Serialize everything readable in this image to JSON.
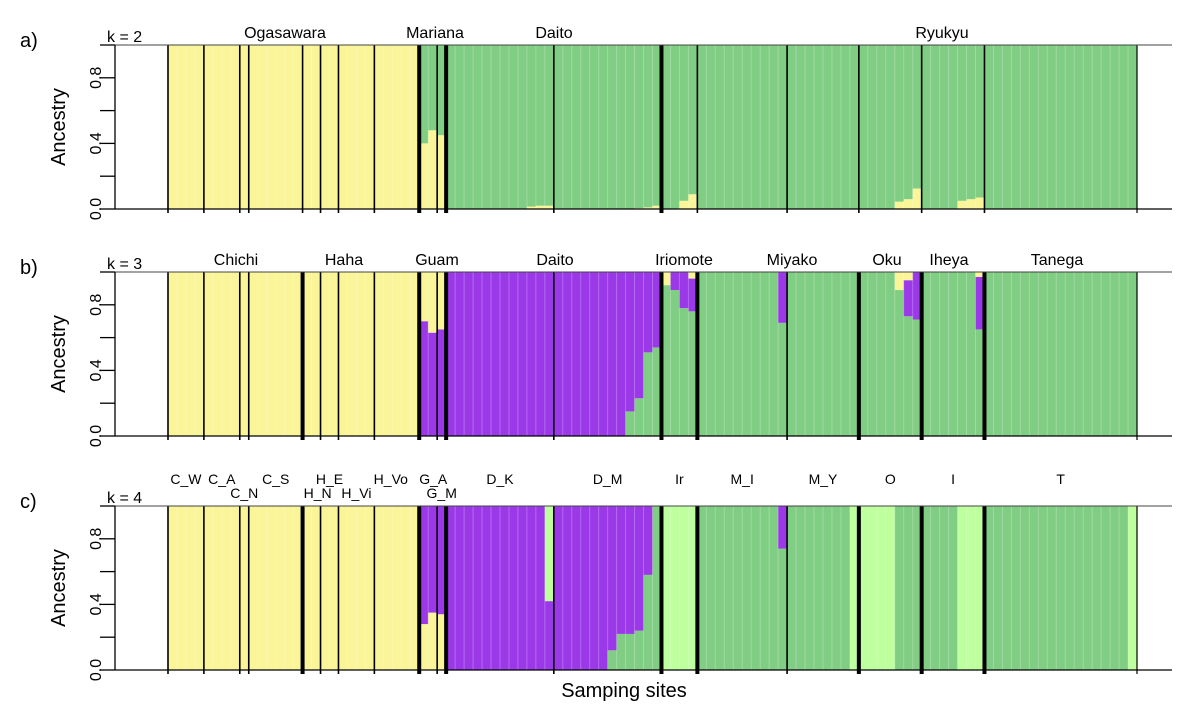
{
  "chart_data": {
    "type": "stacked-bar",
    "xlabel": "Samping sites",
    "ylabel": "Ancestry",
    "ylim": [
      0,
      1
    ],
    "yticks": [
      0,
      0.2,
      0.4,
      0.6,
      0.8,
      1.0
    ],
    "ytick_labels": [
      "0.0",
      "0.4",
      "0.8"
    ],
    "colors": {
      "yellow": "#FAF598",
      "green": "#80CD84",
      "purple": "#9B38E8",
      "lightgreen": "#BEFF9E"
    },
    "populations": [
      {
        "name": "C_W",
        "n": 4
      },
      {
        "name": "C_A",
        "n": 4
      },
      {
        "name": "C_N",
        "n": 1
      },
      {
        "name": "C_S",
        "n": 6
      },
      {
        "name": "H_N",
        "n": 2
      },
      {
        "name": "H_E",
        "n": 2
      },
      {
        "name": "H_Vi",
        "n": 4
      },
      {
        "name": "H_Vo",
        "n": 5
      },
      {
        "name": "G_A",
        "n": 2
      },
      {
        "name": "G_M",
        "n": 1
      },
      {
        "name": "D_K",
        "n": 12
      },
      {
        "name": "D_M",
        "n": 12
      },
      {
        "name": "Ir",
        "n": 4
      },
      {
        "name": "M_I",
        "n": 10
      },
      {
        "name": "M_Y",
        "n": 8
      },
      {
        "name": "O",
        "n": 7
      },
      {
        "name": "I",
        "n": 7
      },
      {
        "name": "T",
        "n": 17
      }
    ],
    "panels": [
      {
        "letter": "a)",
        "k_label": "k = 2",
        "components": [
          "yellow",
          "green"
        ],
        "group_labels": [
          "Ogasawara",
          "Mariana",
          "Daito",
          "Ryukyu"
        ],
        "q": {
          "C_W": {
            "default": [
              1,
              0
            ]
          },
          "C_A": {
            "default": [
              1,
              0
            ]
          },
          "C_N": {
            "default": [
              1,
              0
            ]
          },
          "C_S": {
            "default": [
              1,
              0
            ]
          },
          "H_N": {
            "default": [
              1,
              0
            ]
          },
          "H_E": {
            "default": [
              1,
              0
            ]
          },
          "H_Vi": {
            "default": [
              1,
              0
            ]
          },
          "H_Vo": {
            "default": [
              1,
              0
            ]
          },
          "G_A": {
            "default": [
              0,
              1
            ],
            "individuals": {
              "1": [
                0.4,
                0.6
              ],
              "2": [
                0.48,
                0.52
              ]
            }
          },
          "G_M": {
            "default": [
              0,
              1
            ],
            "individuals": {
              "1": [
                0.45,
                0.55
              ]
            }
          },
          "D_K": {
            "default": [
              0,
              1
            ],
            "individuals": {
              "10": [
                0.015,
                0.985
              ],
              "11": [
                0.02,
                0.98
              ],
              "12": [
                0.02,
                0.98
              ]
            }
          },
          "D_M": {
            "default": [
              0,
              1
            ],
            "individuals": {
              "10": [
                0.005,
                0.995
              ],
              "11": [
                0.01,
                0.99
              ],
              "12": [
                0.02,
                0.98
              ]
            }
          },
          "Ir": {
            "default": [
              0,
              1
            ],
            "individuals": {
              "3": [
                0.05,
                0.95
              ],
              "4": [
                0.09,
                0.91
              ]
            }
          },
          "M_I": {
            "default": [
              0,
              1
            ]
          },
          "M_Y": {
            "default": [
              0,
              1
            ]
          },
          "O": {
            "default": [
              0,
              1
            ],
            "individuals": {
              "5": [
                0.045,
                0.955
              ],
              "6": [
                0.06,
                0.94
              ],
              "7": [
                0.125,
                0.875
              ]
            }
          },
          "I": {
            "default": [
              0,
              1
            ],
            "individuals": {
              "5": [
                0.05,
                0.95
              ],
              "6": [
                0.06,
                0.94
              ],
              "7": [
                0.07,
                0.93
              ]
            }
          },
          "T": {
            "default": [
              0,
              1
            ]
          }
        }
      },
      {
        "letter": "b)",
        "k_label": "k = 3",
        "components": [
          "green",
          "purple",
          "yellow"
        ],
        "group_labels": [
          "Chichi",
          "Haha",
          "Guam",
          "Daito",
          "Iriomote",
          "Miyako",
          "Oku",
          "Iheya",
          "Tanega"
        ],
        "q": {
          "C_W": {
            "default": [
              0,
              0,
              1
            ]
          },
          "C_A": {
            "default": [
              0,
              0,
              1
            ]
          },
          "C_N": {
            "default": [
              0,
              0,
              1
            ]
          },
          "C_S": {
            "default": [
              0,
              0,
              1
            ]
          },
          "H_N": {
            "default": [
              0,
              0,
              1
            ]
          },
          "H_E": {
            "default": [
              0,
              0,
              1
            ]
          },
          "H_Vi": {
            "default": [
              0,
              0,
              1
            ]
          },
          "H_Vo": {
            "default": [
              0,
              0,
              1
            ]
          },
          "G_A": {
            "default": [
              0,
              1,
              0
            ],
            "individuals": {
              "1": [
                0,
                0.7,
                0.3
              ],
              "2": [
                0,
                0.63,
                0.37
              ]
            }
          },
          "G_M": {
            "default": [
              0,
              1,
              0
            ],
            "individuals": {
              "1": [
                0,
                0.65,
                0.35
              ]
            }
          },
          "D_K": {
            "default": [
              0,
              1,
              0
            ]
          },
          "D_M": {
            "default": [
              0,
              1,
              0
            ],
            "individuals": {
              "9": [
                0.15,
                0.85,
                0
              ],
              "10": [
                0.23,
                0.77,
                0
              ],
              "11": [
                0.51,
                0.49,
                0
              ],
              "12": [
                0.54,
                0.46,
                0
              ]
            }
          },
          "Ir": {
            "default": [
              1,
              0,
              0
            ],
            "individuals": {
              "1": [
                0.92,
                0,
                0.08
              ],
              "2": [
                0.89,
                0.11,
                0
              ],
              "3": [
                0.78,
                0.22,
                0
              ],
              "4": [
                0.76,
                0.2,
                0.04
              ]
            }
          },
          "M_I": {
            "default": [
              1,
              0,
              0
            ],
            "individuals": {
              "10": [
                0.69,
                0.31,
                0
              ]
            }
          },
          "M_Y": {
            "default": [
              1,
              0,
              0
            ]
          },
          "O": {
            "default": [
              1,
              0,
              0
            ],
            "individuals": {
              "5": [
                0.89,
                0,
                0.11
              ],
              "6": [
                0.73,
                0.22,
                0.05
              ],
              "7": [
                0.71,
                0.29,
                0
              ]
            }
          },
          "I": {
            "default": [
              1,
              0,
              0
            ],
            "individuals": {
              "7": [
                0.65,
                0.32,
                0.03
              ]
            }
          },
          "T": {
            "default": [
              1,
              0,
              0
            ]
          }
        }
      },
      {
        "letter": "c)",
        "k_label": "k = 4",
        "components": [
          "yellow",
          "green",
          "purple",
          "lightgreen"
        ],
        "group_labels": [],
        "q": {
          "C_W": {
            "default": [
              1,
              0,
              0,
              0
            ]
          },
          "C_A": {
            "default": [
              1,
              0,
              0,
              0
            ]
          },
          "C_N": {
            "default": [
              1,
              0,
              0,
              0
            ]
          },
          "C_S": {
            "default": [
              1,
              0,
              0,
              0
            ]
          },
          "H_N": {
            "default": [
              1,
              0,
              0,
              0
            ]
          },
          "H_E": {
            "default": [
              1,
              0,
              0,
              0
            ]
          },
          "H_Vi": {
            "default": [
              1,
              0,
              0,
              0
            ]
          },
          "H_Vo": {
            "default": [
              1,
              0,
              0,
              0
            ]
          },
          "G_A": {
            "default": [
              0,
              0,
              1,
              0
            ],
            "individuals": {
              "1": [
                0.28,
                0,
                0.72,
                0
              ],
              "2": [
                0.35,
                0,
                0.65,
                0
              ]
            }
          },
          "G_M": {
            "default": [
              0,
              0,
              1,
              0
            ],
            "individuals": {
              "1": [
                0.34,
                0,
                0.66,
                0
              ]
            }
          },
          "D_K": {
            "default": [
              0,
              0,
              1,
              0
            ],
            "individuals": {
              "12": [
                0,
                0,
                0.42,
                0.58
              ]
            }
          },
          "D_M": {
            "default": [
              0,
              0,
              1,
              0
            ],
            "individuals": {
              "7": [
                0,
                0.12,
                0.88,
                0
              ],
              "8": [
                0,
                0.22,
                0.78,
                0
              ],
              "9": [
                0,
                0.22,
                0.78,
                0
              ],
              "10": [
                0,
                0.24,
                0.76,
                0
              ],
              "11": [
                0,
                0.58,
                0.42,
                0
              ],
              "12": [
                0,
                1,
                0,
                0
              ]
            }
          },
          "Ir": {
            "default": [
              0,
              0,
              0,
              1
            ]
          },
          "M_I": {
            "default": [
              0,
              1,
              0,
              0
            ],
            "individuals": {
              "10": [
                0,
                0.74,
                0.26,
                0
              ]
            }
          },
          "M_Y": {
            "default": [
              0,
              1,
              0,
              0
            ],
            "individuals": {
              "8": [
                0,
                0,
                0,
                1
              ]
            }
          },
          "O": {
            "default": [
              0,
              1,
              0,
              0
            ],
            "individuals": {
              "1": [
                0,
                0,
                0,
                1
              ],
              "2": [
                0,
                0,
                0,
                1
              ],
              "3": [
                0,
                0,
                0,
                1
              ],
              "4": [
                0,
                0,
                0,
                1
              ]
            }
          },
          "I": {
            "default": [
              0,
              1,
              0,
              0
            ],
            "individuals": {
              "5": [
                0,
                0,
                0,
                1
              ],
              "6": [
                0,
                0,
                0,
                1
              ],
              "7": [
                0,
                0,
                0,
                1
              ]
            }
          },
          "T": {
            "default": [
              0,
              1,
              0,
              0
            ],
            "individuals": {
              "17": [
                0,
                0,
                0,
                1
              ]
            }
          }
        }
      }
    ]
  }
}
